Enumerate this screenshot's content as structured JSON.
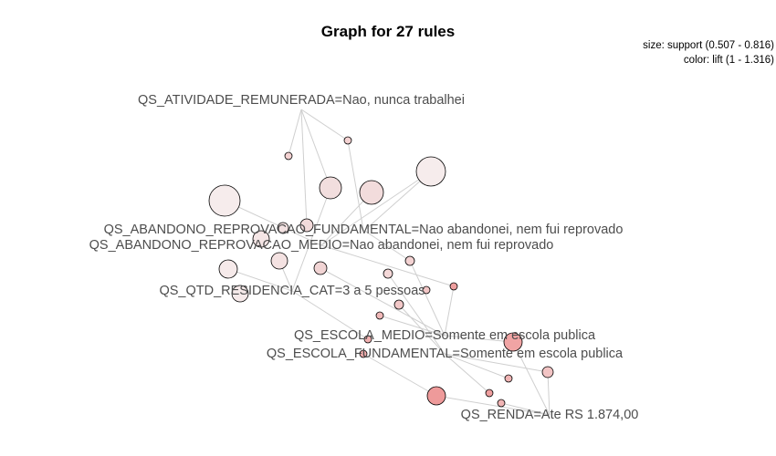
{
  "title": "Graph for 27 rules",
  "legend": {
    "size": "size: support (0.507 - 0.816)",
    "color": "color: lift (1 - 1.316)"
  },
  "nodes": [
    {
      "label": "QS_ATIVIDADE_REMUNERADA=Nao, nunca trabalhei"
    },
    {
      "label": "QS_ABANDONO_REPROVACAO_FUNDAMENTAL=Nao abandonei, nem fui reprovado"
    },
    {
      "label": "QS_ABANDONO_REPROVACAO_MEDIO=Nao abandonei, nem fui reprovado"
    },
    {
      "label": "QS_QTD_RESIDENCIA_CAT=3 a 5 pessoas"
    },
    {
      "label": "QS_ESCOLA_MEDIO=Somente em escola publica"
    },
    {
      "label": "QS_ESCOLA_FUNDAMENTAL=Somente em escola publica"
    },
    {
      "label": "QS_RENDA=Ate RS 1.874,00"
    }
  ]
}
